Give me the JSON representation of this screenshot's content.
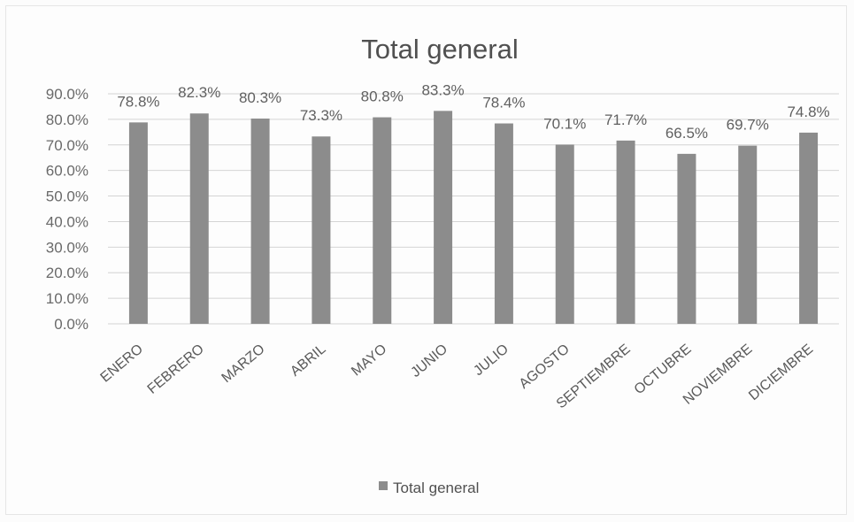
{
  "chart_data": {
    "type": "bar",
    "title": "Total general",
    "categories": [
      "ENERO",
      "FEBRERO",
      "MARZO",
      "ABRIL",
      "MAYO",
      "JUNIO",
      "JULIO",
      "AGOSTO",
      "SEPTIEMBRE",
      "OCTUBRE",
      "NOVIEMBRE",
      "DICIEMBRE"
    ],
    "series": [
      {
        "name": "Total general",
        "values": [
          78.8,
          82.3,
          80.3,
          73.3,
          80.8,
          83.3,
          78.4,
          70.1,
          71.7,
          66.5,
          69.7,
          74.8
        ]
      }
    ],
    "data_labels": [
      "78.8%",
      "82.3%",
      "80.3%",
      "73.3%",
      "80.8%",
      "83.3%",
      "78.4%",
      "70.1%",
      "71.7%",
      "66.5%",
      "69.7%",
      "74.8%"
    ],
    "yticks": [
      "0.0%",
      "10.0%",
      "20.0%",
      "30.0%",
      "40.0%",
      "50.0%",
      "60.0%",
      "70.0%",
      "80.0%",
      "90.0%"
    ],
    "ylim": [
      0,
      90
    ],
    "xlabel": "",
    "ylabel": "",
    "grid": true,
    "legend": "bottom",
    "bar_color": "#8c8c8c",
    "grid_color": "#d4d4d4"
  }
}
